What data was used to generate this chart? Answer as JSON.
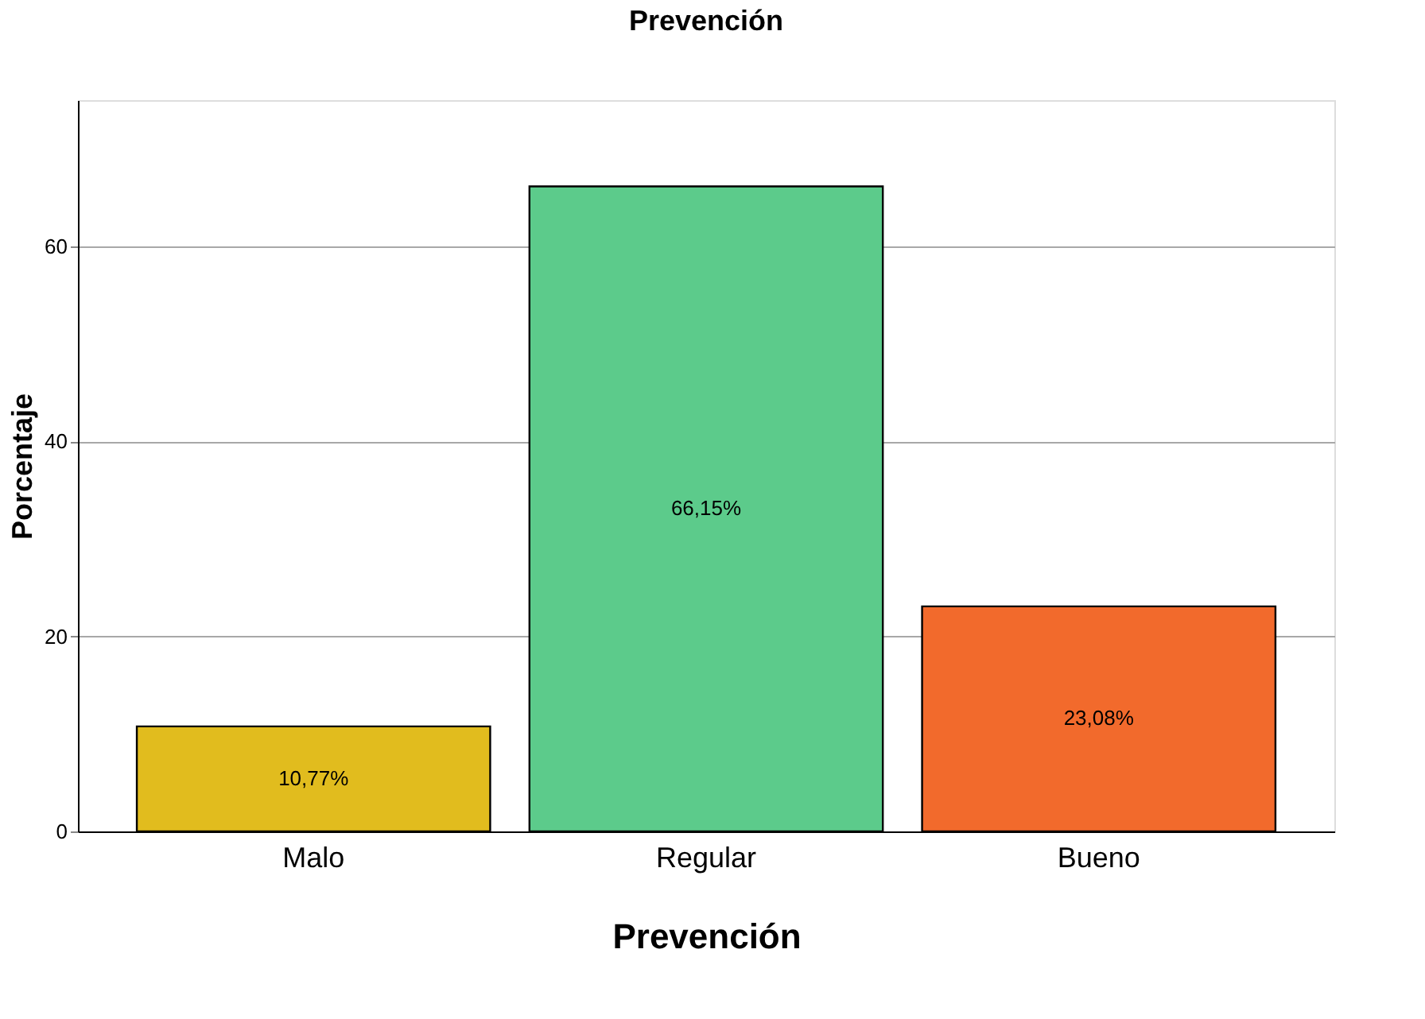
{
  "chart_data": {
    "type": "bar",
    "title": "Prevención",
    "xlabel": "Prevención",
    "ylabel": "Porcentaje",
    "categories": [
      "Malo",
      "Regular",
      "Bueno"
    ],
    "values": [
      10.77,
      66.15,
      23.08
    ],
    "colors": [
      "#e1bc1e",
      "#5ccb8b",
      "#f26a2c"
    ],
    "value_labels": [
      "10,77%",
      "66,15%",
      "23,08%"
    ],
    "ylim": [
      0,
      75
    ],
    "yticks": [
      0,
      20,
      40,
      60
    ],
    "grid": "y"
  }
}
